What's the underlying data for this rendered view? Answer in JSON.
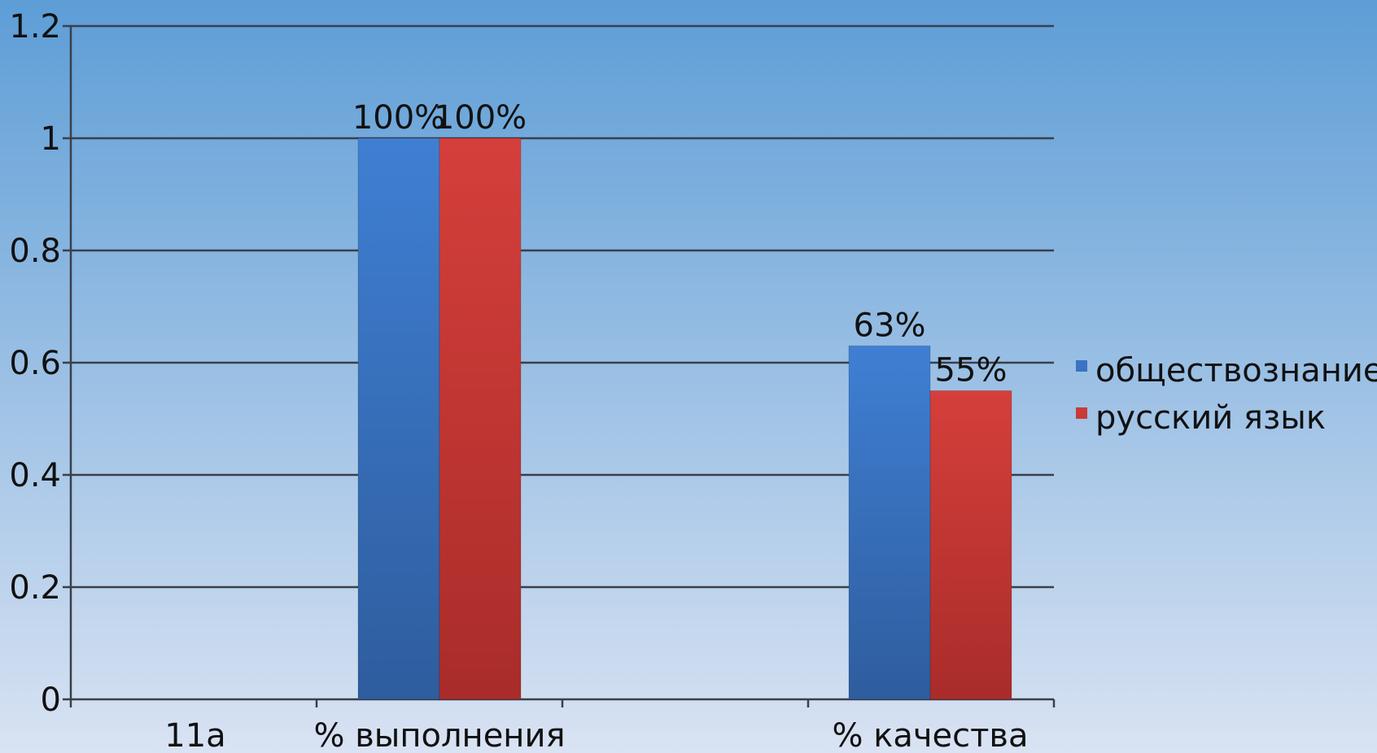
{
  "chart_data": {
    "type": "bar",
    "categories": [
      "11а",
      "% выполнения",
      "% качества"
    ],
    "series": [
      {
        "name": "обществознание",
        "values": [
          null,
          1.0,
          0.63
        ],
        "labels": [
          null,
          "100%",
          "63%"
        ]
      },
      {
        "name": "русский язык",
        "values": [
          null,
          1.0,
          0.55
        ],
        "labels": [
          null,
          "100%",
          "55%"
        ]
      }
    ],
    "title": "",
    "xlabel": "",
    "ylabel": "",
    "ylim": [
      0,
      1.2
    ],
    "yticks": [
      "0",
      "0.2",
      "0.4",
      "0.6",
      "0.8",
      "1",
      "1.2"
    ],
    "grid": true,
    "legend_position": "right",
    "colors": {
      "background_top": "#5d9dd6",
      "background_bottom": "#d9e3f3",
      "series_1": "#3a72c4",
      "series_2": "#c93b37",
      "gridline": "#3a3f4a",
      "axis": "#3a3f4a"
    }
  }
}
